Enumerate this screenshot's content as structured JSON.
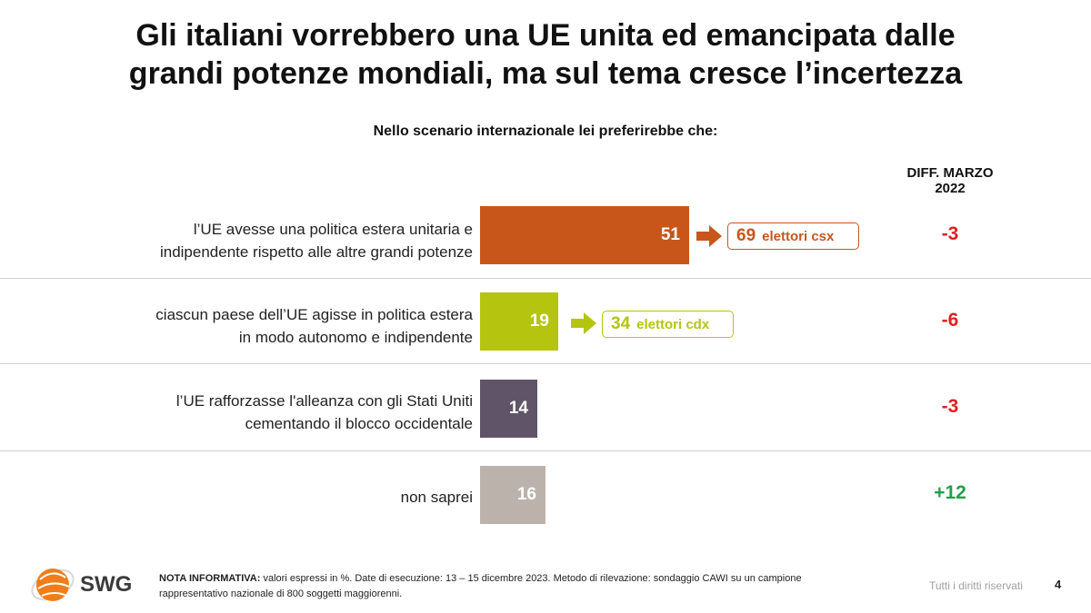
{
  "title_line1": "Gli italiani vorrebbero una UE unita ed emancipata dalle",
  "title_line2": "grandi potenze mondiali, ma sul tema cresce l’incertezza",
  "diff_header": {
    "line1": "DIFF. MARZO",
    "line2": "2022"
  },
  "colors": {
    "orange": "#c8561b",
    "lime": "#b5c40e",
    "purple": "#5f5468",
    "grey": "#bbb3ab",
    "diff_negative": "#e0201f",
    "diff_positive": "#22a04a"
  },
  "chart_data": {
    "type": "bar",
    "orientation": "horizontal",
    "title": "Nello scenario internazionale lei preferirebbe che:",
    "categories": [
      [
        "l’UE avesse una politica estera unitaria e",
        "indipendente rispetto alle altre grandi potenze"
      ],
      [
        "ciascun paese dell’UE agisse in politica estera",
        "in modo autonomo e indipendente"
      ],
      [
        "l’UE rafforzasse l'alleanza con gli Stati Uniti",
        "cementando il blocco occidentale"
      ],
      [
        "non saprei"
      ]
    ],
    "values": [
      51,
      19,
      14,
      16
    ],
    "value_labels": [
      "51",
      "19",
      "14",
      "16"
    ],
    "diff": [
      "-3",
      "-6",
      "-3",
      "+12"
    ],
    "callouts": [
      {
        "value": "69",
        "label": "elettori csx"
      },
      {
        "value": "34",
        "label": "elettori cdx"
      }
    ],
    "xlim": [
      0,
      100
    ],
    "unit": "%"
  },
  "footer": {
    "logo_text": "SWG",
    "note_bold": "NOTA INFORMATIVA:",
    "note_line1": " valori espressi in %. Date di esecuzione: 13 – 15 dicembre 2023. Metodo di rilevazione: sondaggio CAWI su un campione",
    "note_line2": "rappresentativo nazionale di 800 soggetti maggiorenni.",
    "rights": "Tutti i diritti riservati",
    "page_number": "4"
  }
}
